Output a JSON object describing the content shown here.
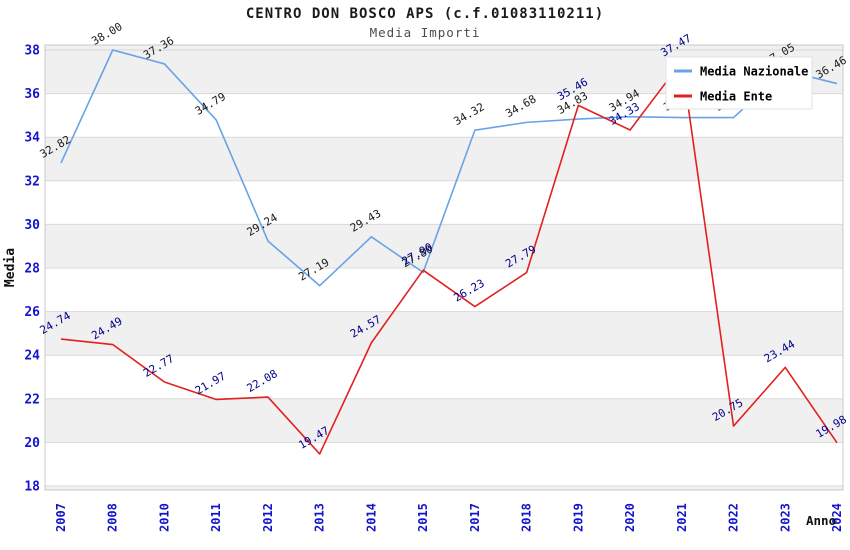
{
  "title": "CENTRO DON BOSCO APS (c.f.01083110211)",
  "subtitle": "Media Importi",
  "legend": {
    "items": [
      "Media Nazionale",
      "Media Ente"
    ]
  },
  "colors": {
    "nazionale_line": "#69a3e6",
    "ente_line": "#e32020",
    "nazionale_label": "#1a1a1a",
    "ente_label": "#00008b",
    "tick_label": "#1414cc",
    "axis_title": "#111111",
    "band": "#f0f0f0",
    "gridline": "#d9d9d9",
    "plot_border": "#c8c8c8",
    "legend_bg": "#ffffff",
    "legend_border": "#e2e2e2"
  },
  "chart_data": {
    "type": "line",
    "title": "CENTRO DON BOSCO APS (c.f.01083110211)",
    "subtitle": "Media Importi",
    "xlabel": "Anno",
    "ylabel": "Media",
    "ylim": [
      18,
      38
    ],
    "yticks": [
      18,
      20,
      22,
      24,
      26,
      28,
      30,
      32,
      34,
      36,
      38
    ],
    "grid": true,
    "legend_position": "upper right",
    "categories": [
      "2007",
      "2008",
      "2010",
      "2011",
      "2012",
      "2013",
      "2014",
      "2015",
      "2017",
      "2018",
      "2019",
      "2020",
      "2021",
      "2022",
      "2023",
      "2024"
    ],
    "series": [
      {
        "name": "Media Nazionale",
        "values": [
          32.82,
          38.0,
          37.36,
          34.79,
          29.24,
          27.19,
          29.43,
          27.8,
          34.32,
          34.68,
          34.83,
          34.94,
          34.9,
          34.9,
          37.05,
          36.46
        ],
        "labels": [
          "32.82",
          "38.00",
          "37.36",
          "34.79",
          "29.24",
          "27.19",
          "29.43",
          "27.80",
          "34.32",
          "34.68",
          "34.83",
          "34.94",
          "34.9",
          "34.9",
          "37.05",
          "36.46"
        ]
      },
      {
        "name": "Media Ente",
        "values": [
          24.74,
          24.49,
          22.77,
          21.97,
          22.08,
          19.47,
          24.57,
          27.9,
          26.23,
          27.79,
          35.46,
          34.33,
          37.47,
          20.75,
          23.44,
          19.98
        ],
        "labels": [
          "24.74",
          "24.49",
          "22.77",
          "21.97",
          "22.08",
          "19.47",
          "24.57",
          "27.90",
          "26.23",
          "27.79",
          "35.46",
          "34.33",
          "37.47",
          "20.75",
          "23.44",
          "19.98"
        ]
      }
    ]
  }
}
